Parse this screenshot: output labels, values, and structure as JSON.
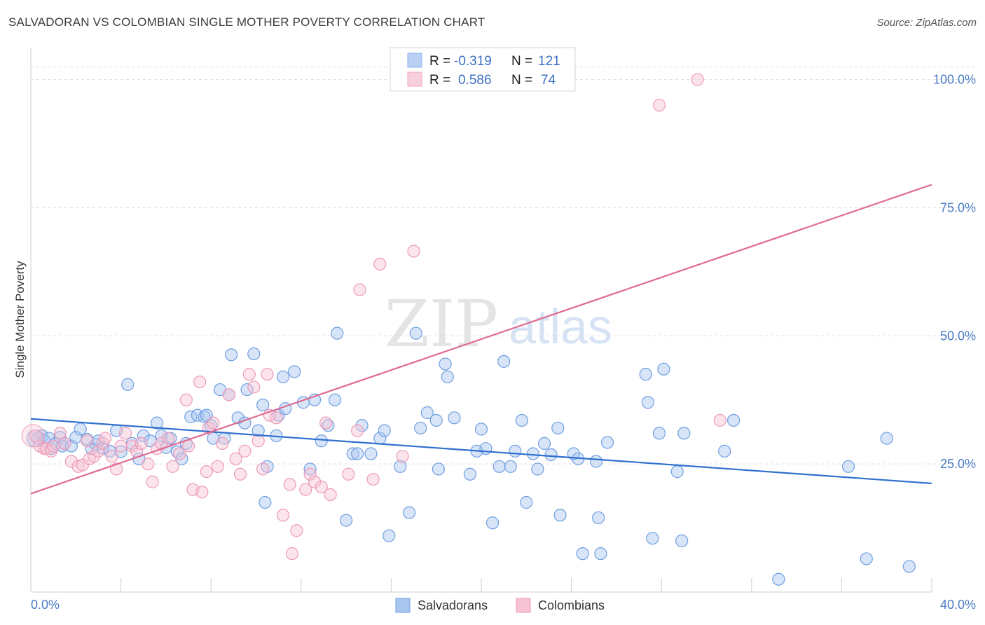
{
  "title": "SALVADORAN VS COLOMBIAN SINGLE MOTHER POVERTY CORRELATION CHART",
  "source": "Source: ZipAtlas.com",
  "watermark": {
    "zip": "ZIP",
    "atlas": "atlas"
  },
  "legend_box": {
    "rows": [
      {
        "r_label": "R = ",
        "r_value": "-0.319",
        "n_label": "N = ",
        "n_value": "121",
        "color": "#8ab4ee"
      },
      {
        "r_label": "R = ",
        "r_value": "0.586",
        "n_label": "N = ",
        "n_value": "74",
        "color": "#f3a8c2"
      }
    ]
  },
  "colors": {
    "blue_fill": "#a9c6f0",
    "blue_stroke": "#6f9fe0",
    "blue_line": "#2f6fce",
    "pink_fill": "#f6c3d4",
    "pink_stroke": "#ee9ab8",
    "pink_line": "#e06a93",
    "grid": "#dddddd",
    "tick_text": "#4a7cc4"
  },
  "chart_data": {
    "type": "scatter",
    "ylabel": "Single Mother Poverty",
    "xlabel": "",
    "xlim": [
      0,
      40
    ],
    "ylim": [
      0,
      105
    ],
    "x_tick_labels": [
      "0.0%",
      "40.0%"
    ],
    "y_ticks": [
      25,
      50,
      75,
      100
    ],
    "y_tick_labels": [
      "25.0%",
      "50.0%",
      "75.0%",
      "100.0%"
    ],
    "grid": "horizontal dashed",
    "legend_position": "top-center",
    "series": [
      {
        "name": "Salvadorans",
        "color": "#a9c6f0",
        "trend": {
          "x": [
            0,
            40
          ],
          "y": [
            33.8,
            21.2
          ]
        },
        "points": [
          [
            0.3,
            30
          ],
          [
            0.5,
            30.5
          ],
          [
            0.6,
            29.5
          ],
          [
            0.8,
            30
          ],
          [
            0.9,
            28
          ],
          [
            1.1,
            29
          ],
          [
            1.3,
            30.2
          ],
          [
            1.4,
            28.5
          ],
          [
            1.5,
            29
          ],
          [
            1.8,
            28.5
          ],
          [
            2.0,
            30.2
          ],
          [
            2.2,
            31.8
          ],
          [
            2.5,
            29.8
          ],
          [
            2.7,
            28
          ],
          [
            2.9,
            28.8
          ],
          [
            3.0,
            29.5
          ],
          [
            3.2,
            28.1
          ],
          [
            3.5,
            27.5
          ],
          [
            3.8,
            31.5
          ],
          [
            4.0,
            27.4
          ],
          [
            4.3,
            40.5
          ],
          [
            4.5,
            29
          ],
          [
            4.8,
            26
          ],
          [
            5.0,
            30.5
          ],
          [
            5.3,
            29.5
          ],
          [
            5.6,
            33
          ],
          [
            5.8,
            30.5
          ],
          [
            6.0,
            28.2
          ],
          [
            6.2,
            30
          ],
          [
            6.5,
            27.4
          ],
          [
            6.7,
            26
          ],
          [
            6.9,
            29
          ],
          [
            7.1,
            34.2
          ],
          [
            7.4,
            34.5
          ],
          [
            7.7,
            34.2
          ],
          [
            7.8,
            34.5
          ],
          [
            8.0,
            32.5
          ],
          [
            8.1,
            30
          ],
          [
            8.4,
            39.5
          ],
          [
            8.6,
            30
          ],
          [
            8.8,
            38.5
          ],
          [
            8.9,
            46.3
          ],
          [
            9.2,
            34
          ],
          [
            9.5,
            33
          ],
          [
            9.6,
            39.5
          ],
          [
            9.9,
            46.5
          ],
          [
            10.1,
            31.5
          ],
          [
            10.3,
            36.5
          ],
          [
            10.4,
            17.5
          ],
          [
            10.5,
            24.5
          ],
          [
            10.9,
            30.5
          ],
          [
            11.0,
            34.5
          ],
          [
            11.2,
            42
          ],
          [
            11.3,
            35.8
          ],
          [
            11.7,
            43
          ],
          [
            12.1,
            37
          ],
          [
            12.4,
            24
          ],
          [
            12.6,
            37.5
          ],
          [
            12.9,
            29.5
          ],
          [
            13.2,
            32.5
          ],
          [
            13.5,
            37.5
          ],
          [
            13.6,
            50.5
          ],
          [
            14.0,
            14
          ],
          [
            14.3,
            27
          ],
          [
            14.5,
            27
          ],
          [
            14.7,
            32.5
          ],
          [
            15.1,
            27
          ],
          [
            15.5,
            30
          ],
          [
            15.7,
            31.5
          ],
          [
            15.9,
            11
          ],
          [
            16.4,
            24.5
          ],
          [
            16.8,
            15.5
          ],
          [
            17.1,
            50.5
          ],
          [
            17.3,
            32
          ],
          [
            17.6,
            35
          ],
          [
            18.0,
            33.5
          ],
          [
            18.1,
            24
          ],
          [
            18.4,
            44.5
          ],
          [
            18.5,
            42
          ],
          [
            18.8,
            34
          ],
          [
            19.5,
            23
          ],
          [
            19.8,
            27.5
          ],
          [
            20.0,
            31.8
          ],
          [
            20.2,
            28
          ],
          [
            20.5,
            13.5
          ],
          [
            20.8,
            24.5
          ],
          [
            21.0,
            45
          ],
          [
            21.3,
            24.5
          ],
          [
            21.5,
            27.5
          ],
          [
            21.8,
            33.5
          ],
          [
            22.0,
            17.5
          ],
          [
            22.3,
            27
          ],
          [
            22.5,
            24
          ],
          [
            22.8,
            29
          ],
          [
            23.1,
            26.8
          ],
          [
            23.4,
            32
          ],
          [
            23.5,
            15
          ],
          [
            24.1,
            27
          ],
          [
            24.3,
            26
          ],
          [
            24.5,
            7.5
          ],
          [
            25.1,
            25.5
          ],
          [
            25.2,
            14.5
          ],
          [
            25.3,
            7.5
          ],
          [
            25.6,
            29.2
          ],
          [
            27.3,
            42.5
          ],
          [
            27.4,
            37
          ],
          [
            27.6,
            10.5
          ],
          [
            27.9,
            31
          ],
          [
            28.1,
            43.5
          ],
          [
            28.7,
            23.5
          ],
          [
            28.9,
            10
          ],
          [
            29.0,
            31
          ],
          [
            30.8,
            27.5
          ],
          [
            31.2,
            33.5
          ],
          [
            33.2,
            2.5
          ],
          [
            36.3,
            24.5
          ],
          [
            37.1,
            6.5
          ],
          [
            38.0,
            30
          ],
          [
            39.0,
            5
          ]
        ]
      },
      {
        "name": "Colombians",
        "color": "#f6c3d4",
        "trend": {
          "x": [
            0,
            40
          ],
          "y": [
            19.2,
            79.5
          ]
        },
        "points": [
          [
            0.2,
            30.5
          ],
          [
            0.4,
            28.5
          ],
          [
            0.6,
            28
          ],
          [
            0.7,
            28
          ],
          [
            0.9,
            27.5
          ],
          [
            1.0,
            28.5
          ],
          [
            1.3,
            31
          ],
          [
            1.5,
            29
          ],
          [
            1.8,
            25.5
          ],
          [
            2.1,
            24.5
          ],
          [
            2.3,
            24.8
          ],
          [
            2.5,
            29.5
          ],
          [
            2.6,
            26
          ],
          [
            2.8,
            26.5
          ],
          [
            3.0,
            27.5
          ],
          [
            3.2,
            29
          ],
          [
            3.3,
            30
          ],
          [
            3.6,
            26.5
          ],
          [
            3.8,
            24
          ],
          [
            4.0,
            28.5
          ],
          [
            4.2,
            31
          ],
          [
            4.5,
            28.5
          ],
          [
            4.7,
            27.5
          ],
          [
            4.9,
            29
          ],
          [
            5.2,
            25
          ],
          [
            5.4,
            21.5
          ],
          [
            5.6,
            28
          ],
          [
            5.8,
            29
          ],
          [
            6.1,
            30
          ],
          [
            6.3,
            24.5
          ],
          [
            6.6,
            27
          ],
          [
            7.0,
            28.5
          ],
          [
            7.2,
            20
          ],
          [
            7.5,
            41
          ],
          [
            7.6,
            19.5
          ],
          [
            7.8,
            23.5
          ],
          [
            7.9,
            32
          ],
          [
            8.1,
            33
          ],
          [
            8.3,
            24.5
          ],
          [
            8.5,
            29
          ],
          [
            8.8,
            38.5
          ],
          [
            9.1,
            26
          ],
          [
            9.3,
            23
          ],
          [
            9.5,
            27.5
          ],
          [
            9.7,
            42.5
          ],
          [
            9.9,
            40
          ],
          [
            10.1,
            29.5
          ],
          [
            10.3,
            24
          ],
          [
            10.6,
            34.5
          ],
          [
            10.9,
            34
          ],
          [
            11.2,
            15
          ],
          [
            11.5,
            21
          ],
          [
            11.6,
            7.5
          ],
          [
            11.8,
            12
          ],
          [
            12.2,
            20
          ],
          [
            12.4,
            23
          ],
          [
            12.6,
            21.5
          ],
          [
            12.9,
            20.5
          ],
          [
            13.1,
            33
          ],
          [
            13.3,
            19
          ],
          [
            14.1,
            23
          ],
          [
            14.5,
            31.5
          ],
          [
            14.6,
            59
          ],
          [
            15.2,
            22
          ],
          [
            15.5,
            64
          ],
          [
            16.5,
            26.5
          ],
          [
            17.0,
            66.5
          ],
          [
            21.1,
            100
          ],
          [
            22.8,
            100
          ],
          [
            27.9,
            95
          ],
          [
            29.6,
            100
          ],
          [
            30.6,
            33.5
          ],
          [
            10.5,
            42.5
          ],
          [
            6.9,
            37.5
          ]
        ]
      }
    ]
  },
  "bottom_legend": [
    {
      "label": "Salvadorans",
      "color": "#a9c6f0"
    },
    {
      "label": "Colombians",
      "color": "#f6c3d4"
    }
  ]
}
